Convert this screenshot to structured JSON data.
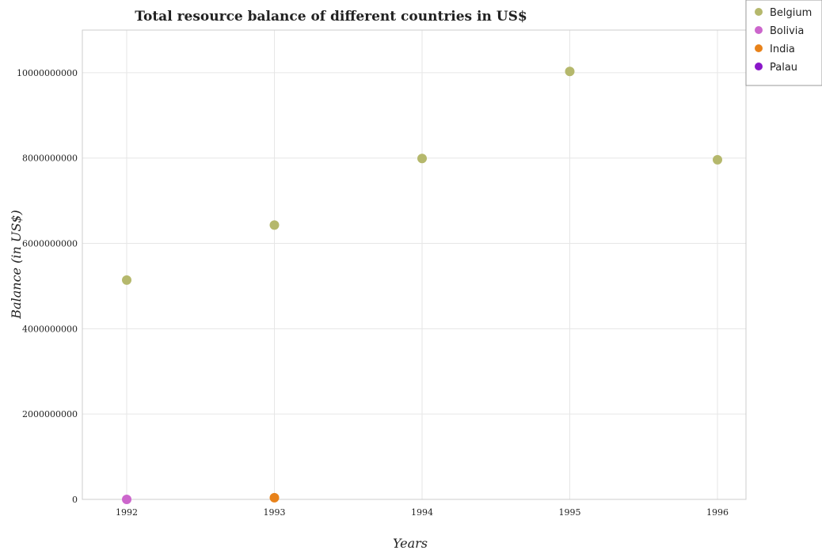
{
  "chart_data": {
    "type": "scatter",
    "title": "Total resource balance of different countries in US$",
    "xlabel": "Years",
    "ylabel": "Balance (in US$)",
    "categories": [
      "1992",
      "1993",
      "1994",
      "1995",
      "1996"
    ],
    "yticks": [
      "0",
      "2000000000",
      "4000000000",
      "6000000000",
      "8000000000",
      "10000000000"
    ],
    "ylim": [
      0,
      11000000000
    ],
    "grid": true,
    "legend_position": "top-right",
    "series": [
      {
        "name": "Belgium",
        "color": "#b5b86c",
        "values": [
          5140000000,
          6430000000,
          7990000000,
          10030000000,
          7960000000
        ]
      },
      {
        "name": "Bolivia",
        "color": "#cc66cc",
        "values": [
          0,
          null,
          null,
          null,
          null
        ]
      },
      {
        "name": "India",
        "color": "#e8821a",
        "values": [
          null,
          40000000,
          null,
          null,
          null
        ]
      },
      {
        "name": "Palau",
        "color": "#8a17c9",
        "values": [
          null,
          null,
          null,
          null,
          null
        ]
      }
    ]
  }
}
